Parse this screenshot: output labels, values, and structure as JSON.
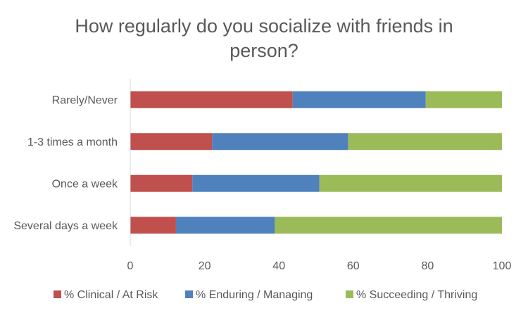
{
  "chart_data": {
    "type": "bar",
    "orientation": "horizontal",
    "stacked": true,
    "title_lines": [
      "How regularly do you socialize with friends in",
      "person?"
    ],
    "categories": [
      "Rarely/Never",
      "1-3 times a month",
      "Once a week",
      "Several days a week"
    ],
    "series": [
      {
        "name": "% Clinical / At Risk",
        "color": "#c0504d",
        "values": [
          43.7,
          22.0,
          16.7,
          12.3
        ]
      },
      {
        "name": "% Enduring / Managing",
        "color": "#4f81bd",
        "values": [
          35.8,
          36.6,
          34.2,
          26.6
        ]
      },
      {
        "name": "% Succeeding / Thriving",
        "color": "#9bbb59",
        "values": [
          20.5,
          41.4,
          49.1,
          61.1
        ]
      }
    ],
    "xlim": [
      0,
      100
    ],
    "xticks": [
      "0",
      "20",
      "40",
      "60",
      "80",
      "100"
    ],
    "grid": false,
    "legend_position": "bottom"
  }
}
